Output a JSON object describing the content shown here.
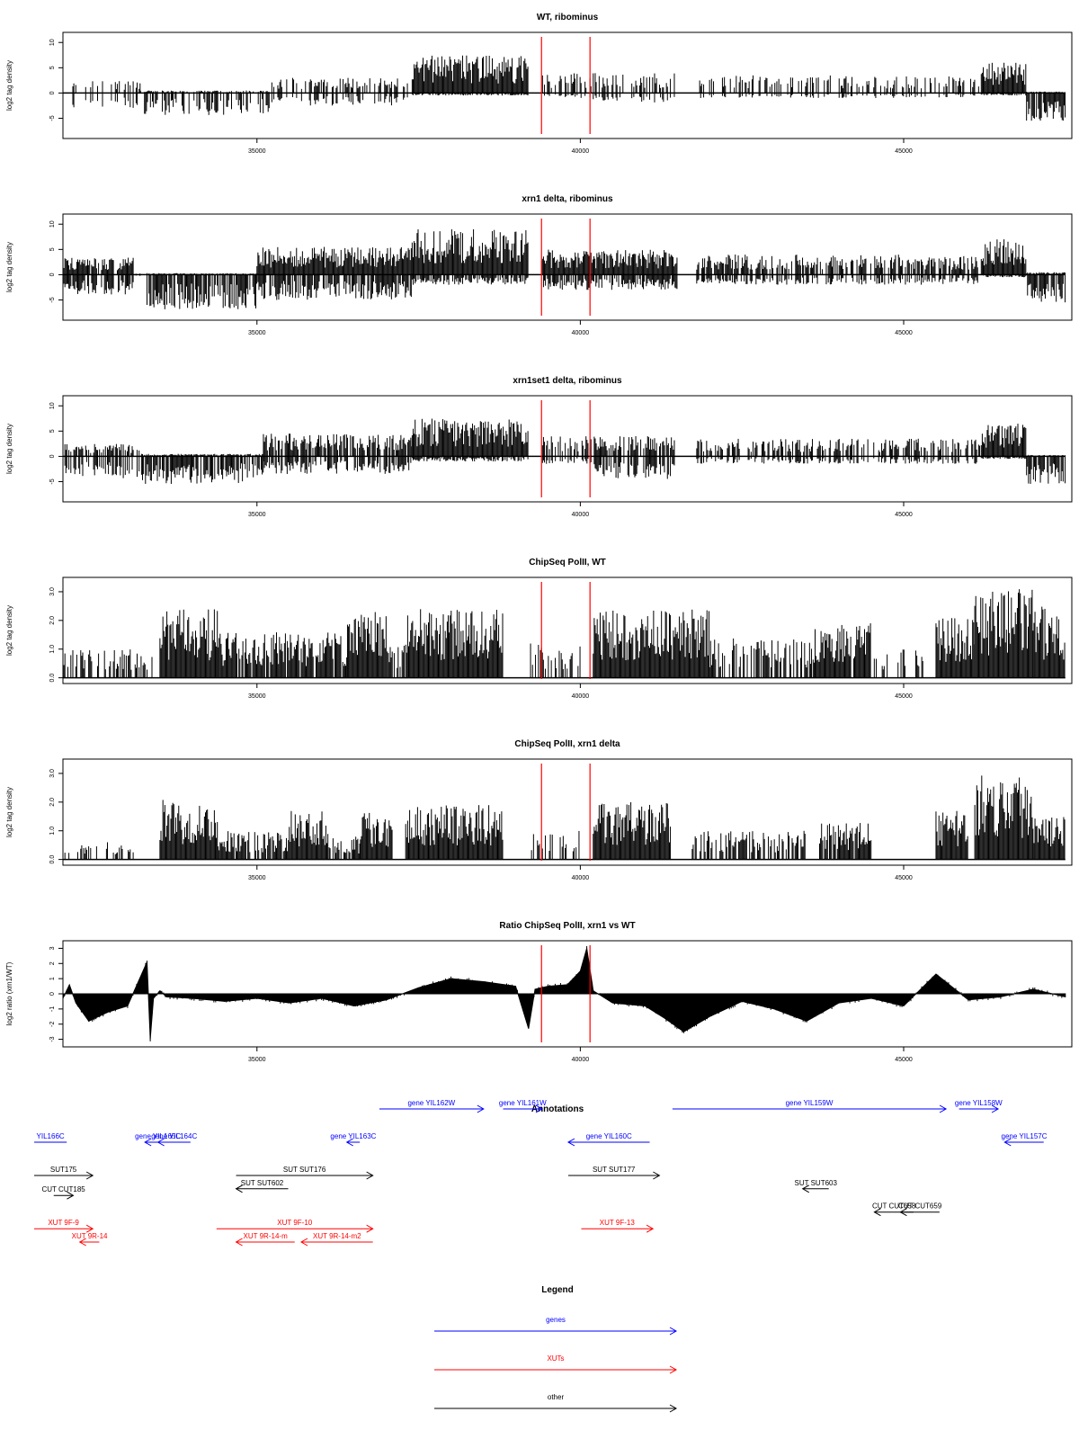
{
  "colors": {
    "gene": "#0000ff",
    "xut": "#ff0000",
    "other": "#000000",
    "marker": "#ff0000",
    "bar": "#000000"
  },
  "chart_data": [
    {
      "type": "bar",
      "title": "WT, ribominus",
      "ylabel": "log2 tag density",
      "xlim": [
        32000,
        47600
      ],
      "xticks": [
        "35000",
        "40000",
        "45000"
      ],
      "ylim": [
        -9,
        12
      ],
      "yticks": [
        "-5",
        "0",
        "5",
        "10"
      ],
      "markers": [
        39400,
        40150
      ],
      "segments": [
        {
          "range": [
            32000,
            33200
          ],
          "value": 2.5,
          "neg": -3,
          "density": 0.3
        },
        {
          "range": [
            33200,
            35200
          ],
          "value": 0.5,
          "neg": -4.5,
          "density": 0.7
        },
        {
          "range": [
            35200,
            37400
          ],
          "value": 3,
          "neg": -2.5,
          "density": 0.5
        },
        {
          "range": [
            37400,
            39200
          ],
          "value": 7.5,
          "neg": -0.5,
          "density": 1.0
        },
        {
          "range": [
            39400,
            40200
          ],
          "value": 4,
          "neg": -1,
          "density": 0.5
        },
        {
          "range": [
            40200,
            41500
          ],
          "value": 4,
          "neg": -2,
          "density": 0.4
        },
        {
          "range": [
            41800,
            46200
          ],
          "value": 3.5,
          "neg": -1,
          "density": 0.4
        },
        {
          "range": [
            46200,
            46900
          ],
          "value": 6,
          "neg": -0.5,
          "density": 1.0
        },
        {
          "range": [
            46900,
            47500
          ],
          "value": 0.3,
          "neg": -5.5,
          "density": 1.0
        }
      ]
    },
    {
      "type": "bar",
      "title": "xrn1 delta, ribominus",
      "ylabel": "log2 tag density",
      "xlim": [
        32000,
        47600
      ],
      "xticks": [
        "35000",
        "40000",
        "45000"
      ],
      "ylim": [
        -9,
        12
      ],
      "yticks": [
        "-5",
        "0",
        "5",
        "10"
      ],
      "markers": [
        39400,
        40150
      ],
      "segments": [
        {
          "range": [
            32000,
            33100
          ],
          "value": 3.5,
          "neg": -4,
          "density": 0.9
        },
        {
          "range": [
            33100,
            33300
          ],
          "value": 0.3,
          "neg": -0.5,
          "density": 0.2
        },
        {
          "range": [
            33300,
            35000
          ],
          "value": 0.3,
          "neg": -7,
          "density": 1.0
        },
        {
          "range": [
            35000,
            37400
          ],
          "value": 5.5,
          "neg": -5,
          "density": 1.0
        },
        {
          "range": [
            37400,
            39200
          ],
          "value": 9,
          "neg": -2,
          "density": 1.0
        },
        {
          "range": [
            39400,
            41500
          ],
          "value": 5,
          "neg": -3,
          "density": 1.0
        },
        {
          "range": [
            41800,
            46200
          ],
          "value": 4,
          "neg": -2,
          "density": 0.7
        },
        {
          "range": [
            46200,
            46900
          ],
          "value": 7,
          "neg": -0.5,
          "density": 1.0
        },
        {
          "range": [
            46900,
            47500
          ],
          "value": 0.5,
          "neg": -6,
          "density": 1.0
        }
      ]
    },
    {
      "type": "bar",
      "title": "xrn1set1 delta, ribominus",
      "ylabel": "log2 tag density",
      "xlim": [
        32000,
        47600
      ],
      "xticks": [
        "35000",
        "40000",
        "45000"
      ],
      "ylim": [
        -9,
        12
      ],
      "yticks": [
        "-5",
        "0",
        "5",
        "10"
      ],
      "markers": [
        39400,
        40150
      ],
      "segments": [
        {
          "range": [
            32000,
            33200
          ],
          "value": 2.5,
          "neg": -4.5,
          "density": 0.6
        },
        {
          "range": [
            33200,
            35100
          ],
          "value": 0.5,
          "neg": -5.5,
          "density": 0.9
        },
        {
          "range": [
            35100,
            37400
          ],
          "value": 4.5,
          "neg": -3.5,
          "density": 0.8
        },
        {
          "range": [
            37400,
            39200
          ],
          "value": 7.5,
          "neg": -1,
          "density": 1.0
        },
        {
          "range": [
            39400,
            40200
          ],
          "value": 4,
          "neg": -1.5,
          "density": 0.6
        },
        {
          "range": [
            40200,
            41500
          ],
          "value": 4,
          "neg": -4.5,
          "density": 0.8
        },
        {
          "range": [
            41800,
            46200
          ],
          "value": 3.5,
          "neg": -1.5,
          "density": 0.5
        },
        {
          "range": [
            46200,
            46900
          ],
          "value": 6.5,
          "neg": -0.5,
          "density": 1.0
        },
        {
          "range": [
            46900,
            47500
          ],
          "value": 0.3,
          "neg": -5.5,
          "density": 1.0
        }
      ]
    },
    {
      "type": "bar",
      "title": "ChipSeq PolII, WT",
      "ylabel": "log2 tag density",
      "xlim": [
        32000,
        47600
      ],
      "xticks": [
        "35000",
        "40000",
        "45000"
      ],
      "ylim": [
        -0.2,
        3.5
      ],
      "yticks": [
        "0.0",
        "1.0",
        "2.0",
        "3.0"
      ],
      "markers": [
        39400,
        40150
      ],
      "segments": [
        {
          "range": [
            32000,
            33400
          ],
          "value": 1.0,
          "neg": 0,
          "density": 0.5
        },
        {
          "range": [
            33500,
            34400
          ],
          "value": 2.4,
          "neg": 0,
          "density": 1.0
        },
        {
          "range": [
            34400,
            36400
          ],
          "value": 1.6,
          "neg": 0,
          "density": 0.9
        },
        {
          "range": [
            36400,
            37000
          ],
          "value": 2.3,
          "neg": 0,
          "density": 1.0
        },
        {
          "range": [
            37000,
            37300
          ],
          "value": 1.2,
          "neg": 0,
          "density": 0.7
        },
        {
          "range": [
            37300,
            38800
          ],
          "value": 2.4,
          "neg": 0,
          "density": 1.0
        },
        {
          "range": [
            39200,
            40000
          ],
          "value": 1.2,
          "neg": 0,
          "density": 0.5
        },
        {
          "range": [
            40200,
            42000
          ],
          "value": 2.4,
          "neg": 0,
          "density": 1.0
        },
        {
          "range": [
            42000,
            43600
          ],
          "value": 1.4,
          "neg": 0,
          "density": 0.6
        },
        {
          "range": [
            43600,
            44500
          ],
          "value": 1.9,
          "neg": 0,
          "density": 0.9
        },
        {
          "range": [
            44500,
            45300
          ],
          "value": 1.0,
          "neg": 0,
          "density": 0.3
        },
        {
          "range": [
            45500,
            46100
          ],
          "value": 2.2,
          "neg": 0,
          "density": 1.0
        },
        {
          "range": [
            46100,
            47000
          ],
          "value": 3.1,
          "neg": 0,
          "density": 1.0
        },
        {
          "range": [
            47000,
            47500
          ],
          "value": 2.5,
          "neg": 0,
          "density": 1.0
        }
      ]
    },
    {
      "type": "bar",
      "title": "ChipSeq PolII, xrn1 delta",
      "ylabel": "log2 tag density",
      "xlim": [
        32000,
        47600
      ],
      "xticks": [
        "35000",
        "40000",
        "45000"
      ],
      "ylim": [
        -0.2,
        3.5
      ],
      "yticks": [
        "0.0",
        "1.0",
        "2.0",
        "3.0"
      ],
      "markers": [
        39400,
        40150
      ],
      "segments": [
        {
          "range": [
            32000,
            33100
          ],
          "value": 0.6,
          "neg": 0,
          "density": 0.3
        },
        {
          "range": [
            33500,
            34400
          ],
          "value": 2.1,
          "neg": 0,
          "density": 1.0
        },
        {
          "range": [
            34400,
            35500
          ],
          "value": 1.0,
          "neg": 0,
          "density": 0.8
        },
        {
          "range": [
            35500,
            36100
          ],
          "value": 1.7,
          "neg": 0,
          "density": 1.0
        },
        {
          "range": [
            36100,
            36600
          ],
          "value": 0.8,
          "neg": 0,
          "density": 0.6
        },
        {
          "range": [
            36600,
            37100
          ],
          "value": 1.7,
          "neg": 0,
          "density": 1.0
        },
        {
          "range": [
            37300,
            38800
          ],
          "value": 1.9,
          "neg": 0,
          "density": 1.0
        },
        {
          "range": [
            39200,
            40000
          ],
          "value": 1.0,
          "neg": 0,
          "density": 0.5
        },
        {
          "range": [
            40200,
            41400
          ],
          "value": 2.0,
          "neg": 0,
          "density": 1.0
        },
        {
          "range": [
            41700,
            43500
          ],
          "value": 1.0,
          "neg": 0,
          "density": 0.6
        },
        {
          "range": [
            43700,
            44500
          ],
          "value": 1.3,
          "neg": 0,
          "density": 0.9
        },
        {
          "range": [
            45500,
            46000
          ],
          "value": 1.7,
          "neg": 0,
          "density": 1.0
        },
        {
          "range": [
            46100,
            47000
          ],
          "value": 3.0,
          "neg": 0,
          "density": 1.0
        },
        {
          "range": [
            47000,
            47500
          ],
          "value": 1.8,
          "neg": 0,
          "density": 1.0
        }
      ]
    },
    {
      "type": "area",
      "title": "Ratio ChipSeq PolII, xrn1 vs WT",
      "ylabel": "log2 ratio (xrn1/WT)",
      "xlim": [
        32000,
        47600
      ],
      "xticks": [
        "35000",
        "40000",
        "45000"
      ],
      "ylim": [
        -3.5,
        3.5
      ],
      "yticks": [
        "-3",
        "-2",
        "-1",
        "0",
        "1",
        "2",
        "3"
      ],
      "markers": [
        39400,
        40150
      ],
      "x": [
        32000,
        32100,
        32200,
        32400,
        32700,
        33000,
        33300,
        33350,
        33400,
        33500,
        33600,
        34000,
        34500,
        35000,
        35500,
        36000,
        36500,
        37000,
        37500,
        38000,
        38500,
        39000,
        39200,
        39300,
        39500,
        39800,
        40000,
        40100,
        40200,
        40500,
        41000,
        41300,
        41600,
        42000,
        42500,
        43000,
        43500,
        44000,
        44500,
        45000,
        45500,
        46000,
        46500,
        47000,
        47500
      ],
      "y": [
        -0.3,
        0.6,
        -0.6,
        -1.8,
        -1.2,
        -0.8,
        2.1,
        -3.0,
        -0.3,
        0.2,
        -0.2,
        -0.3,
        -0.5,
        -0.3,
        -0.6,
        -0.3,
        -0.8,
        -0.4,
        0.4,
        1.0,
        0.8,
        0.5,
        -2.3,
        0.3,
        0.5,
        0.6,
        1.5,
        3.0,
        0.2,
        -0.6,
        -0.8,
        -1.6,
        -2.5,
        -1.5,
        -0.5,
        -1.0,
        -1.8,
        -0.6,
        -0.3,
        -0.8,
        1.3,
        -0.4,
        -0.2,
        0.3,
        -0.2
      ]
    }
  ],
  "annotations": {
    "title": "Annotations",
    "features": [
      {
        "label": "YIL166C",
        "type": "gene",
        "start": 32000,
        "end": 32500,
        "dir": "none",
        "row": 0
      },
      {
        "label": "gene YIL165C",
        "type": "gene",
        "start": 33700,
        "end": 34100,
        "dir": "left",
        "row": 0
      },
      {
        "label": "gene YIL164C",
        "type": "gene",
        "start": 33900,
        "end": 34400,
        "dir": "left",
        "row": 0
      },
      {
        "label": "gene YIL163C",
        "type": "gene",
        "start": 36800,
        "end": 37000,
        "dir": "left",
        "row": 0
      },
      {
        "label": "gene YIL162W",
        "type": "gene",
        "start": 37300,
        "end": 38900,
        "dir": "right",
        "row": -1
      },
      {
        "label": "gene YIL161W",
        "type": "gene",
        "start": 39200,
        "end": 39800,
        "dir": "right",
        "row": -1
      },
      {
        "label": "gene YIL160C",
        "type": "gene",
        "start": 40200,
        "end": 41450,
        "dir": "left",
        "row": 0
      },
      {
        "label": "gene YIL159W",
        "type": "gene",
        "start": 41800,
        "end": 46000,
        "dir": "right",
        "row": -1
      },
      {
        "label": "gene YIL158W",
        "type": "gene",
        "start": 46200,
        "end": 46800,
        "dir": "right",
        "row": -1
      },
      {
        "label": "gene YIL157C",
        "type": "gene",
        "start": 46900,
        "end": 47500,
        "dir": "left",
        "row": 0
      },
      {
        "label": "SUT175",
        "type": "other",
        "start": 32000,
        "end": 32900,
        "dir": "right",
        "row": 1
      },
      {
        "label": "CUT CUT185",
        "type": "other",
        "start": 32300,
        "end": 32600,
        "dir": "right",
        "row": 1.6
      },
      {
        "label": "SUT SUT176",
        "type": "other",
        "start": 35100,
        "end": 37200,
        "dir": "right",
        "row": 1
      },
      {
        "label": "SUT SUT602",
        "type": "other",
        "start": 35100,
        "end": 35900,
        "dir": "left",
        "row": 1.4
      },
      {
        "label": "SUT SUT177",
        "type": "other",
        "start": 40200,
        "end": 41600,
        "dir": "right",
        "row": 1
      },
      {
        "label": "SUT SUT603",
        "type": "other",
        "start": 43800,
        "end": 44200,
        "dir": "left",
        "row": 1.4
      },
      {
        "label": "CUT CUT658",
        "type": "other",
        "start": 44900,
        "end": 45500,
        "dir": "left",
        "row": 2.1
      },
      {
        "label": "CUT CUT659",
        "type": "other",
        "start": 45300,
        "end": 45900,
        "dir": "left",
        "row": 2.1
      },
      {
        "label": "XUT 9F-9",
        "type": "xut",
        "start": 32000,
        "end": 32900,
        "dir": "right",
        "row": 2.6
      },
      {
        "label": "XUT 9R-14",
        "type": "xut",
        "start": 32700,
        "end": 33000,
        "dir": "left",
        "row": 3.0
      },
      {
        "label": "XUT 9F-10",
        "type": "xut",
        "start": 34800,
        "end": 37200,
        "dir": "right",
        "row": 2.6
      },
      {
        "label": "XUT 9R-14-m",
        "type": "xut",
        "start": 35100,
        "end": 36000,
        "dir": "left",
        "row": 3.0
      },
      {
        "label": "XUT 9R-14-m2",
        "type": "xut",
        "start": 36100,
        "end": 37200,
        "dir": "left",
        "row": 3.0
      },
      {
        "label": "XUT 9F-13",
        "type": "xut",
        "start": 40400,
        "end": 41500,
        "dir": "right",
        "row": 2.6
      }
    ]
  },
  "legend": {
    "title": "Legend",
    "items": [
      {
        "label": "genes",
        "type": "gene"
      },
      {
        "label": "XUTs",
        "type": "xut"
      },
      {
        "label": "other",
        "type": "other"
      }
    ]
  }
}
